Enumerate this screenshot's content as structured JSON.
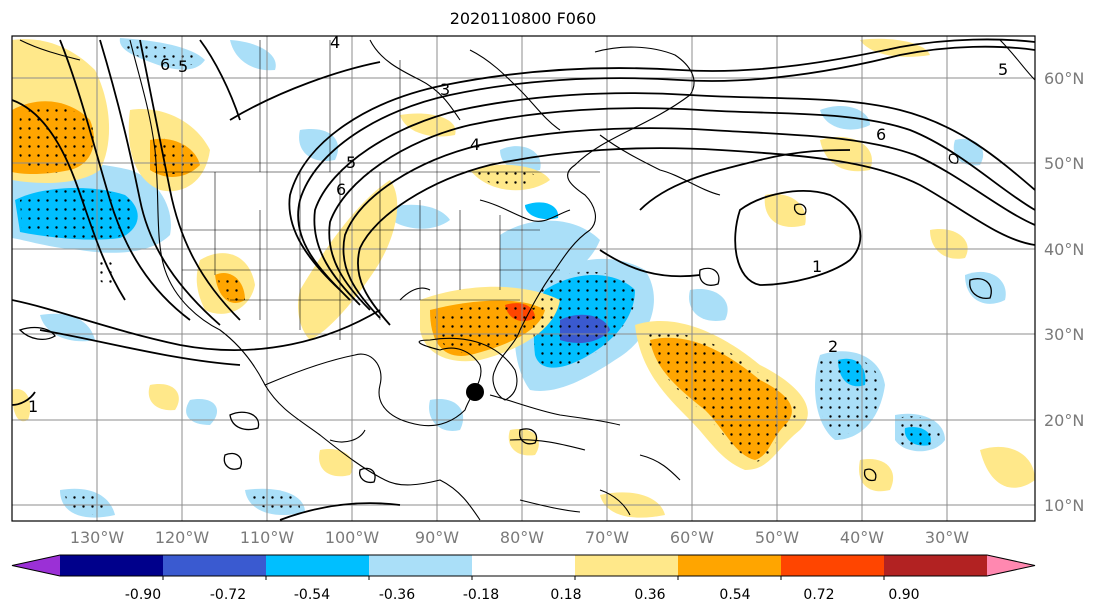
{
  "title": "2020110800 F060",
  "lat_labels": [
    "60°N",
    "50°N",
    "40°N",
    "30°N",
    "20°N",
    "10°N"
  ],
  "lon_labels": [
    "130°W",
    "120°W",
    "110°W",
    "100°W",
    "90°W",
    "80°W",
    "70°W",
    "60°W",
    "50°W",
    "40°W",
    "30°W"
  ],
  "contour_labels": [
    "6",
    "5",
    "3",
    "4",
    "6",
    "5",
    "1",
    "2",
    "1",
    "6",
    "5",
    "4"
  ],
  "colorbar": {
    "ticks": [
      "-0.90",
      "-0.72",
      "-0.54",
      "-0.36",
      "-0.18",
      "0.18",
      "0.36",
      "0.54",
      "0.72",
      "0.90"
    ],
    "colors": [
      "#9b30d6",
      "#00008b",
      "#3a5ad0",
      "#00bfff",
      "#aadff8",
      "#ffffff",
      "#ffe88a",
      "#ffa500",
      "#ff4500",
      "#b22222",
      "#ff88b0"
    ]
  },
  "colors": {
    "land_line": "#000000",
    "grid": "#8c8c8c"
  },
  "marker": "storm-position"
}
